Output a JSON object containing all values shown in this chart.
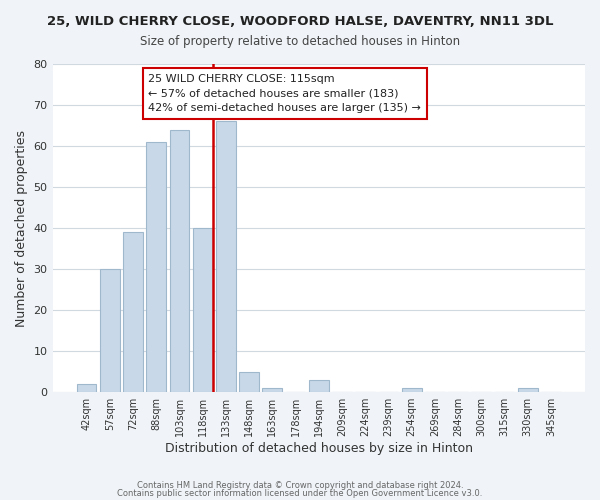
{
  "title": "25, WILD CHERRY CLOSE, WOODFORD HALSE, DAVENTRY, NN11 3DL",
  "subtitle": "Size of property relative to detached houses in Hinton",
  "xlabel": "Distribution of detached houses by size in Hinton",
  "ylabel": "Number of detached properties",
  "bar_color": "#c8d8e8",
  "bar_edge_color": "#a0b8cc",
  "categories": [
    "42sqm",
    "57sqm",
    "72sqm",
    "88sqm",
    "103sqm",
    "118sqm",
    "133sqm",
    "148sqm",
    "163sqm",
    "178sqm",
    "194sqm",
    "209sqm",
    "224sqm",
    "239sqm",
    "254sqm",
    "269sqm",
    "284sqm",
    "300sqm",
    "315sqm",
    "330sqm",
    "345sqm"
  ],
  "values": [
    2,
    30,
    39,
    61,
    64,
    40,
    66,
    5,
    1,
    0,
    3,
    0,
    0,
    0,
    1,
    0,
    0,
    0,
    0,
    1,
    0
  ],
  "ylim": [
    0,
    80
  ],
  "yticks": [
    0,
    10,
    20,
    30,
    40,
    50,
    60,
    70,
    80
  ],
  "vline_x": 5.425,
  "vline_color": "#cc0000",
  "annotation_title": "25 WILD CHERRY CLOSE: 115sqm",
  "annotation_line1": "← 57% of detached houses are smaller (183)",
  "annotation_line2": "42% of semi-detached houses are larger (135) →",
  "footer1": "Contains HM Land Registry data © Crown copyright and database right 2024.",
  "footer2": "Contains public sector information licensed under the Open Government Licence v3.0.",
  "background_color": "#f0f4f8",
  "plot_background_color": "#ffffff",
  "grid_color": "#d0d8e0"
}
